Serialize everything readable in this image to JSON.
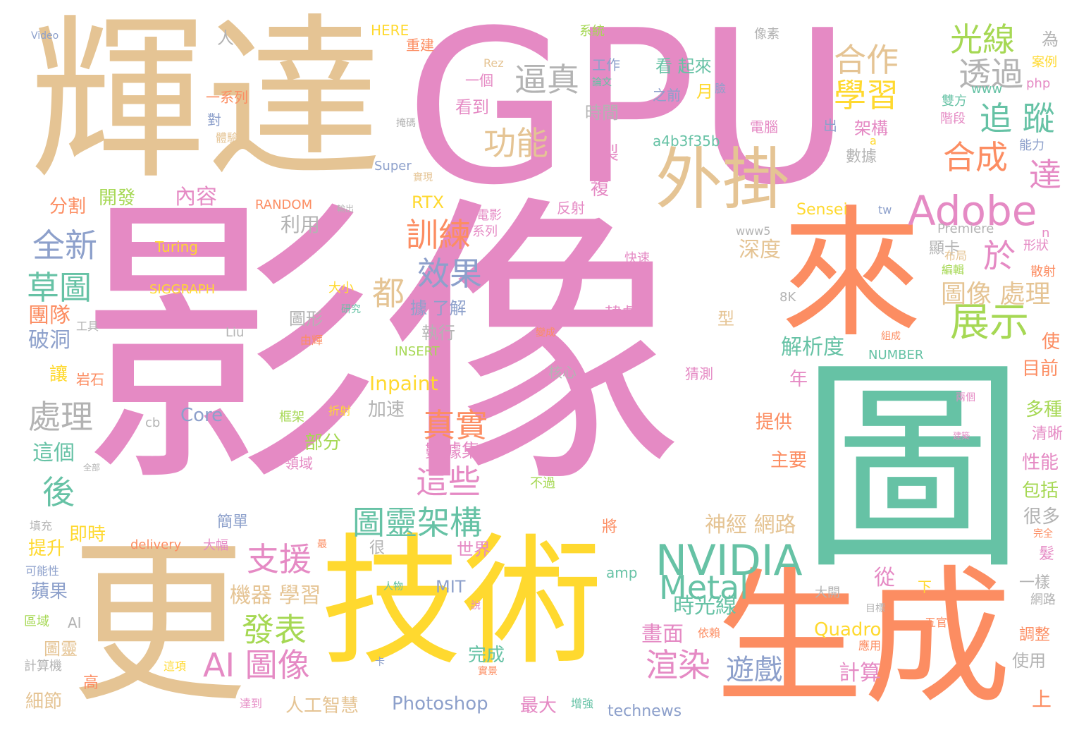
{
  "palette": {
    "pink": "#e58ac4",
    "teal": "#66c2a5",
    "orange": "#fc8d62",
    "tan": "#e5c494",
    "yellow": "#ffd92f",
    "blue": "#8da0cb",
    "green": "#a6d854",
    "gray": "#b3b3b3"
  },
  "words": [
    {
      "text": "影像",
      "color": "pink"
    },
    {
      "text": "GPU",
      "color": "pink"
    },
    {
      "text": "圖",
      "color": "teal"
    },
    {
      "text": "輝達",
      "color": "tan"
    },
    {
      "text": "更",
      "color": "tan"
    },
    {
      "text": "技術",
      "color": "yellow"
    },
    {
      "text": "生成",
      "color": "orange"
    },
    {
      "text": "來",
      "color": "orange"
    },
    {
      "text": "外掛",
      "color": "tan"
    },
    {
      "text": "Adobe",
      "color": "pink"
    },
    {
      "text": "NVIDIA",
      "color": "teal"
    },
    {
      "text": "光線",
      "color": "green"
    },
    {
      "text": "合作",
      "color": "tan"
    },
    {
      "text": "學習",
      "color": "yellow"
    },
    {
      "text": "透過",
      "color": "gray"
    },
    {
      "text": "逼真",
      "color": "gray"
    },
    {
      "text": "追 蹤",
      "color": "teal"
    },
    {
      "text": "合成",
      "color": "orange"
    },
    {
      "text": "功能",
      "color": "tan"
    },
    {
      "text": "達",
      "color": "pink"
    },
    {
      "text": "於",
      "color": "pink"
    },
    {
      "text": "展示",
      "color": "green"
    },
    {
      "text": "訓練",
      "color": "orange"
    },
    {
      "text": "效果",
      "color": "blue"
    },
    {
      "text": "全新",
      "color": "blue"
    },
    {
      "text": "草圖",
      "color": "teal"
    },
    {
      "text": "都",
      "color": "tan"
    },
    {
      "text": "圖像 處理",
      "color": "tan"
    },
    {
      "text": "處理",
      "color": "gray"
    },
    {
      "text": "真實",
      "color": "orange"
    },
    {
      "text": "這些",
      "color": "pink"
    },
    {
      "text": "後",
      "color": "teal"
    },
    {
      "text": "圖靈架構",
      "color": "teal"
    },
    {
      "text": "支援",
      "color": "pink"
    },
    {
      "text": "發表",
      "color": "green"
    },
    {
      "text": "AI 圖像",
      "color": "pink"
    },
    {
      "text": "Metal",
      "color": "teal"
    },
    {
      "text": "渲染",
      "color": "pink"
    },
    {
      "text": "遊戲",
      "color": "blue"
    },
    {
      "text": "機器 學習",
      "color": "tan"
    },
    {
      "text": "神經 網路",
      "color": "tan"
    },
    {
      "text": "解析度",
      "color": "teal"
    },
    {
      "text": "深度",
      "color": "tan"
    },
    {
      "text": "時光線",
      "color": "teal"
    },
    {
      "text": "畫面",
      "color": "pink"
    },
    {
      "text": "計算",
      "color": "pink"
    },
    {
      "text": "內容",
      "color": "pink"
    },
    {
      "text": "分割",
      "color": "orange"
    },
    {
      "text": "開發",
      "color": "green"
    },
    {
      "text": "利用",
      "color": "gray"
    },
    {
      "text": "團隊",
      "color": "orange"
    },
    {
      "text": "破洞",
      "color": "blue"
    },
    {
      "text": "讓",
      "color": "yellow"
    },
    {
      "text": "這個",
      "color": "teal"
    },
    {
      "text": "提升",
      "color": "yellow"
    },
    {
      "text": "即時",
      "color": "yellow"
    },
    {
      "text": "蘋果",
      "color": "blue"
    },
    {
      "text": "區域",
      "color": "green"
    },
    {
      "text": "圖靈",
      "color": "tan"
    },
    {
      "text": "計算機",
      "color": "gray"
    },
    {
      "text": "細節",
      "color": "tan"
    },
    {
      "text": "高",
      "color": "orange"
    },
    {
      "text": "人工智慧",
      "color": "tan"
    },
    {
      "text": "Photoshop",
      "color": "blue"
    },
    {
      "text": "最大",
      "color": "pink"
    },
    {
      "text": "technews",
      "color": "blue"
    },
    {
      "text": "完成",
      "color": "teal"
    },
    {
      "text": "Quadro",
      "color": "yellow"
    },
    {
      "text": "從",
      "color": "pink"
    },
    {
      "text": "使用",
      "color": "gray"
    },
    {
      "text": "上",
      "color": "orange"
    },
    {
      "text": "調整",
      "color": "orange"
    },
    {
      "text": "網路",
      "color": "gray"
    },
    {
      "text": "一樣",
      "color": "gray"
    },
    {
      "text": "很多",
      "color": "gray"
    },
    {
      "text": "包括",
      "color": "green"
    },
    {
      "text": "性能",
      "color": "pink"
    },
    {
      "text": "清晰",
      "color": "pink"
    },
    {
      "text": "多種",
      "color": "green"
    },
    {
      "text": "目前",
      "color": "orange"
    },
    {
      "text": "使",
      "color": "orange"
    },
    {
      "text": "主要",
      "color": "orange"
    },
    {
      "text": "提供",
      "color": "orange"
    },
    {
      "text": "加速",
      "color": "gray"
    },
    {
      "text": "部分",
      "color": "green"
    },
    {
      "text": "數據集",
      "color": "pink"
    },
    {
      "text": "Inpaint",
      "color": "yellow"
    },
    {
      "text": "Core",
      "color": "blue"
    },
    {
      "text": "年",
      "color": "pink"
    },
    {
      "text": "執行",
      "color": "gray"
    },
    {
      "text": "圖形",
      "color": "gray"
    },
    {
      "text": "據 了解",
      "color": "blue"
    },
    {
      "text": "韓劇",
      "color": "pink"
    },
    {
      "text": "型",
      "color": "tan"
    },
    {
      "text": "世界",
      "color": "pink"
    },
    {
      "text": "MIT",
      "color": "blue"
    },
    {
      "text": "將",
      "color": "orange"
    },
    {
      "text": "很",
      "color": "gray"
    },
    {
      "text": "簡單",
      "color": "blue"
    },
    {
      "text": "RTX",
      "color": "yellow"
    },
    {
      "text": "Sensei",
      "color": "yellow"
    },
    {
      "text": "製",
      "color": "pink"
    },
    {
      "text": "複",
      "color": "pink"
    },
    {
      "text": "時間",
      "color": "gray"
    },
    {
      "text": "看到",
      "color": "pink"
    },
    {
      "text": "看 起來",
      "color": "teal"
    },
    {
      "text": "架構",
      "color": "pink"
    },
    {
      "text": "數據",
      "color": "gray"
    },
    {
      "text": "出",
      "color": "blue"
    },
    {
      "text": "a4b3f35b",
      "color": "teal"
    },
    {
      "text": "Super",
      "color": "blue"
    },
    {
      "text": "RANDOM",
      "color": "orange"
    },
    {
      "text": "Turing",
      "color": "yellow"
    },
    {
      "text": "SIGGRAPH",
      "color": "yellow"
    },
    {
      "text": "INSERT",
      "color": "green"
    },
    {
      "text": "NUMBER",
      "color": "teal"
    },
    {
      "text": "顯卡",
      "color": "gray"
    },
    {
      "text": "形狀",
      "color": "pink"
    },
    {
      "text": "散射",
      "color": "orange"
    },
    {
      "text": "編輯",
      "color": "green"
    },
    {
      "text": "布局",
      "color": "tan"
    },
    {
      "text": "快速",
      "color": "pink"
    },
    {
      "text": "反射",
      "color": "pink"
    },
    {
      "text": "電影",
      "color": "pink"
    },
    {
      "text": "系列",
      "color": "pink"
    },
    {
      "text": "大小",
      "color": "yellow"
    },
    {
      "text": "研究",
      "color": "teal"
    },
    {
      "text": "工具",
      "color": "gray"
    },
    {
      "text": "由輝",
      "color": "orange"
    },
    {
      "text": "Liu",
      "color": "gray"
    },
    {
      "text": "8K",
      "color": "gray"
    },
    {
      "text": "核心",
      "color": "gray"
    },
    {
      "text": "猜測",
      "color": "pink"
    },
    {
      "text": "變成",
      "color": "orange"
    },
    {
      "text": "組成",
      "color": "orange"
    },
    {
      "text": "兩個",
      "color": "pink"
    },
    {
      "text": "建築",
      "color": "pink"
    },
    {
      "text": "不過",
      "color": "green"
    },
    {
      "text": "領域",
      "color": "pink"
    },
    {
      "text": "框架",
      "color": "green"
    },
    {
      "text": "折射",
      "color": "yellow"
    },
    {
      "text": "岩石",
      "color": "orange"
    },
    {
      "text": "cb",
      "color": "gray"
    },
    {
      "text": "全部",
      "color": "gray"
    },
    {
      "text": "填充",
      "color": "gray"
    },
    {
      "text": "可能性",
      "color": "blue"
    },
    {
      "text": "AI",
      "color": "gray"
    },
    {
      "text": "大幅",
      "color": "pink"
    },
    {
      "text": "delivery",
      "color": "orange"
    },
    {
      "text": "最",
      "color": "orange"
    },
    {
      "text": "amp",
      "color": "teal"
    },
    {
      "text": "人物",
      "color": "teal"
    },
    {
      "text": "說",
      "color": "pink"
    },
    {
      "text": "大開",
      "color": "gray"
    },
    {
      "text": "目標",
      "color": "gray"
    },
    {
      "text": "下",
      "color": "yellow"
    },
    {
      "text": "五官",
      "color": "orange"
    },
    {
      "text": "應用",
      "color": "orange"
    },
    {
      "text": "依賴",
      "color": "orange"
    },
    {
      "text": "卡",
      "color": "blue"
    },
    {
      "text": "實景",
      "color": "orange"
    },
    {
      "text": "這項",
      "color": "yellow"
    },
    {
      "text": "達到",
      "color": "pink"
    },
    {
      "text": "增強",
      "color": "teal"
    },
    {
      "text": "完全",
      "color": "orange"
    },
    {
      "text": "髮",
      "color": "pink"
    },
    {
      "text": "Video",
      "color": "blue"
    },
    {
      "text": "人",
      "color": "gray"
    },
    {
      "text": "HERE",
      "color": "yellow"
    },
    {
      "text": "重建",
      "color": "orange"
    },
    {
      "text": "系統",
      "color": "green"
    },
    {
      "text": "像素",
      "color": "gray"
    },
    {
      "text": "為",
      "color": "gray"
    },
    {
      "text": "案例",
      "color": "yellow"
    },
    {
      "text": "php",
      "color": "pink"
    },
    {
      "text": "www",
      "color": "teal"
    },
    {
      "text": "雙方",
      "color": "teal"
    },
    {
      "text": "階段",
      "color": "pink"
    },
    {
      "text": "能力",
      "color": "blue"
    },
    {
      "text": "電腦",
      "color": "pink"
    },
    {
      "text": "Rez",
      "color": "tan"
    },
    {
      "text": "一個",
      "color": "pink"
    },
    {
      "text": "工作",
      "color": "blue"
    },
    {
      "text": "論文",
      "color": "teal"
    },
    {
      "text": "之前",
      "color": "blue"
    },
    {
      "text": "月",
      "color": "yellow"
    },
    {
      "text": "臉",
      "color": "blue"
    },
    {
      "text": "一系列",
      "color": "orange"
    },
    {
      "text": "對",
      "color": "blue"
    },
    {
      "text": "體驗",
      "color": "tan"
    },
    {
      "text": "掩碼",
      "color": "gray"
    },
    {
      "text": "實現",
      "color": "tan"
    },
    {
      "text": "輸出",
      "color": "gray"
    },
    {
      "text": "www5",
      "color": "gray"
    },
    {
      "text": "Premiere",
      "color": "gray"
    },
    {
      "text": "tw",
      "color": "blue"
    },
    {
      "text": "n",
      "color": "pink"
    },
    {
      "text": "a",
      "color": "yellow"
    }
  ]
}
